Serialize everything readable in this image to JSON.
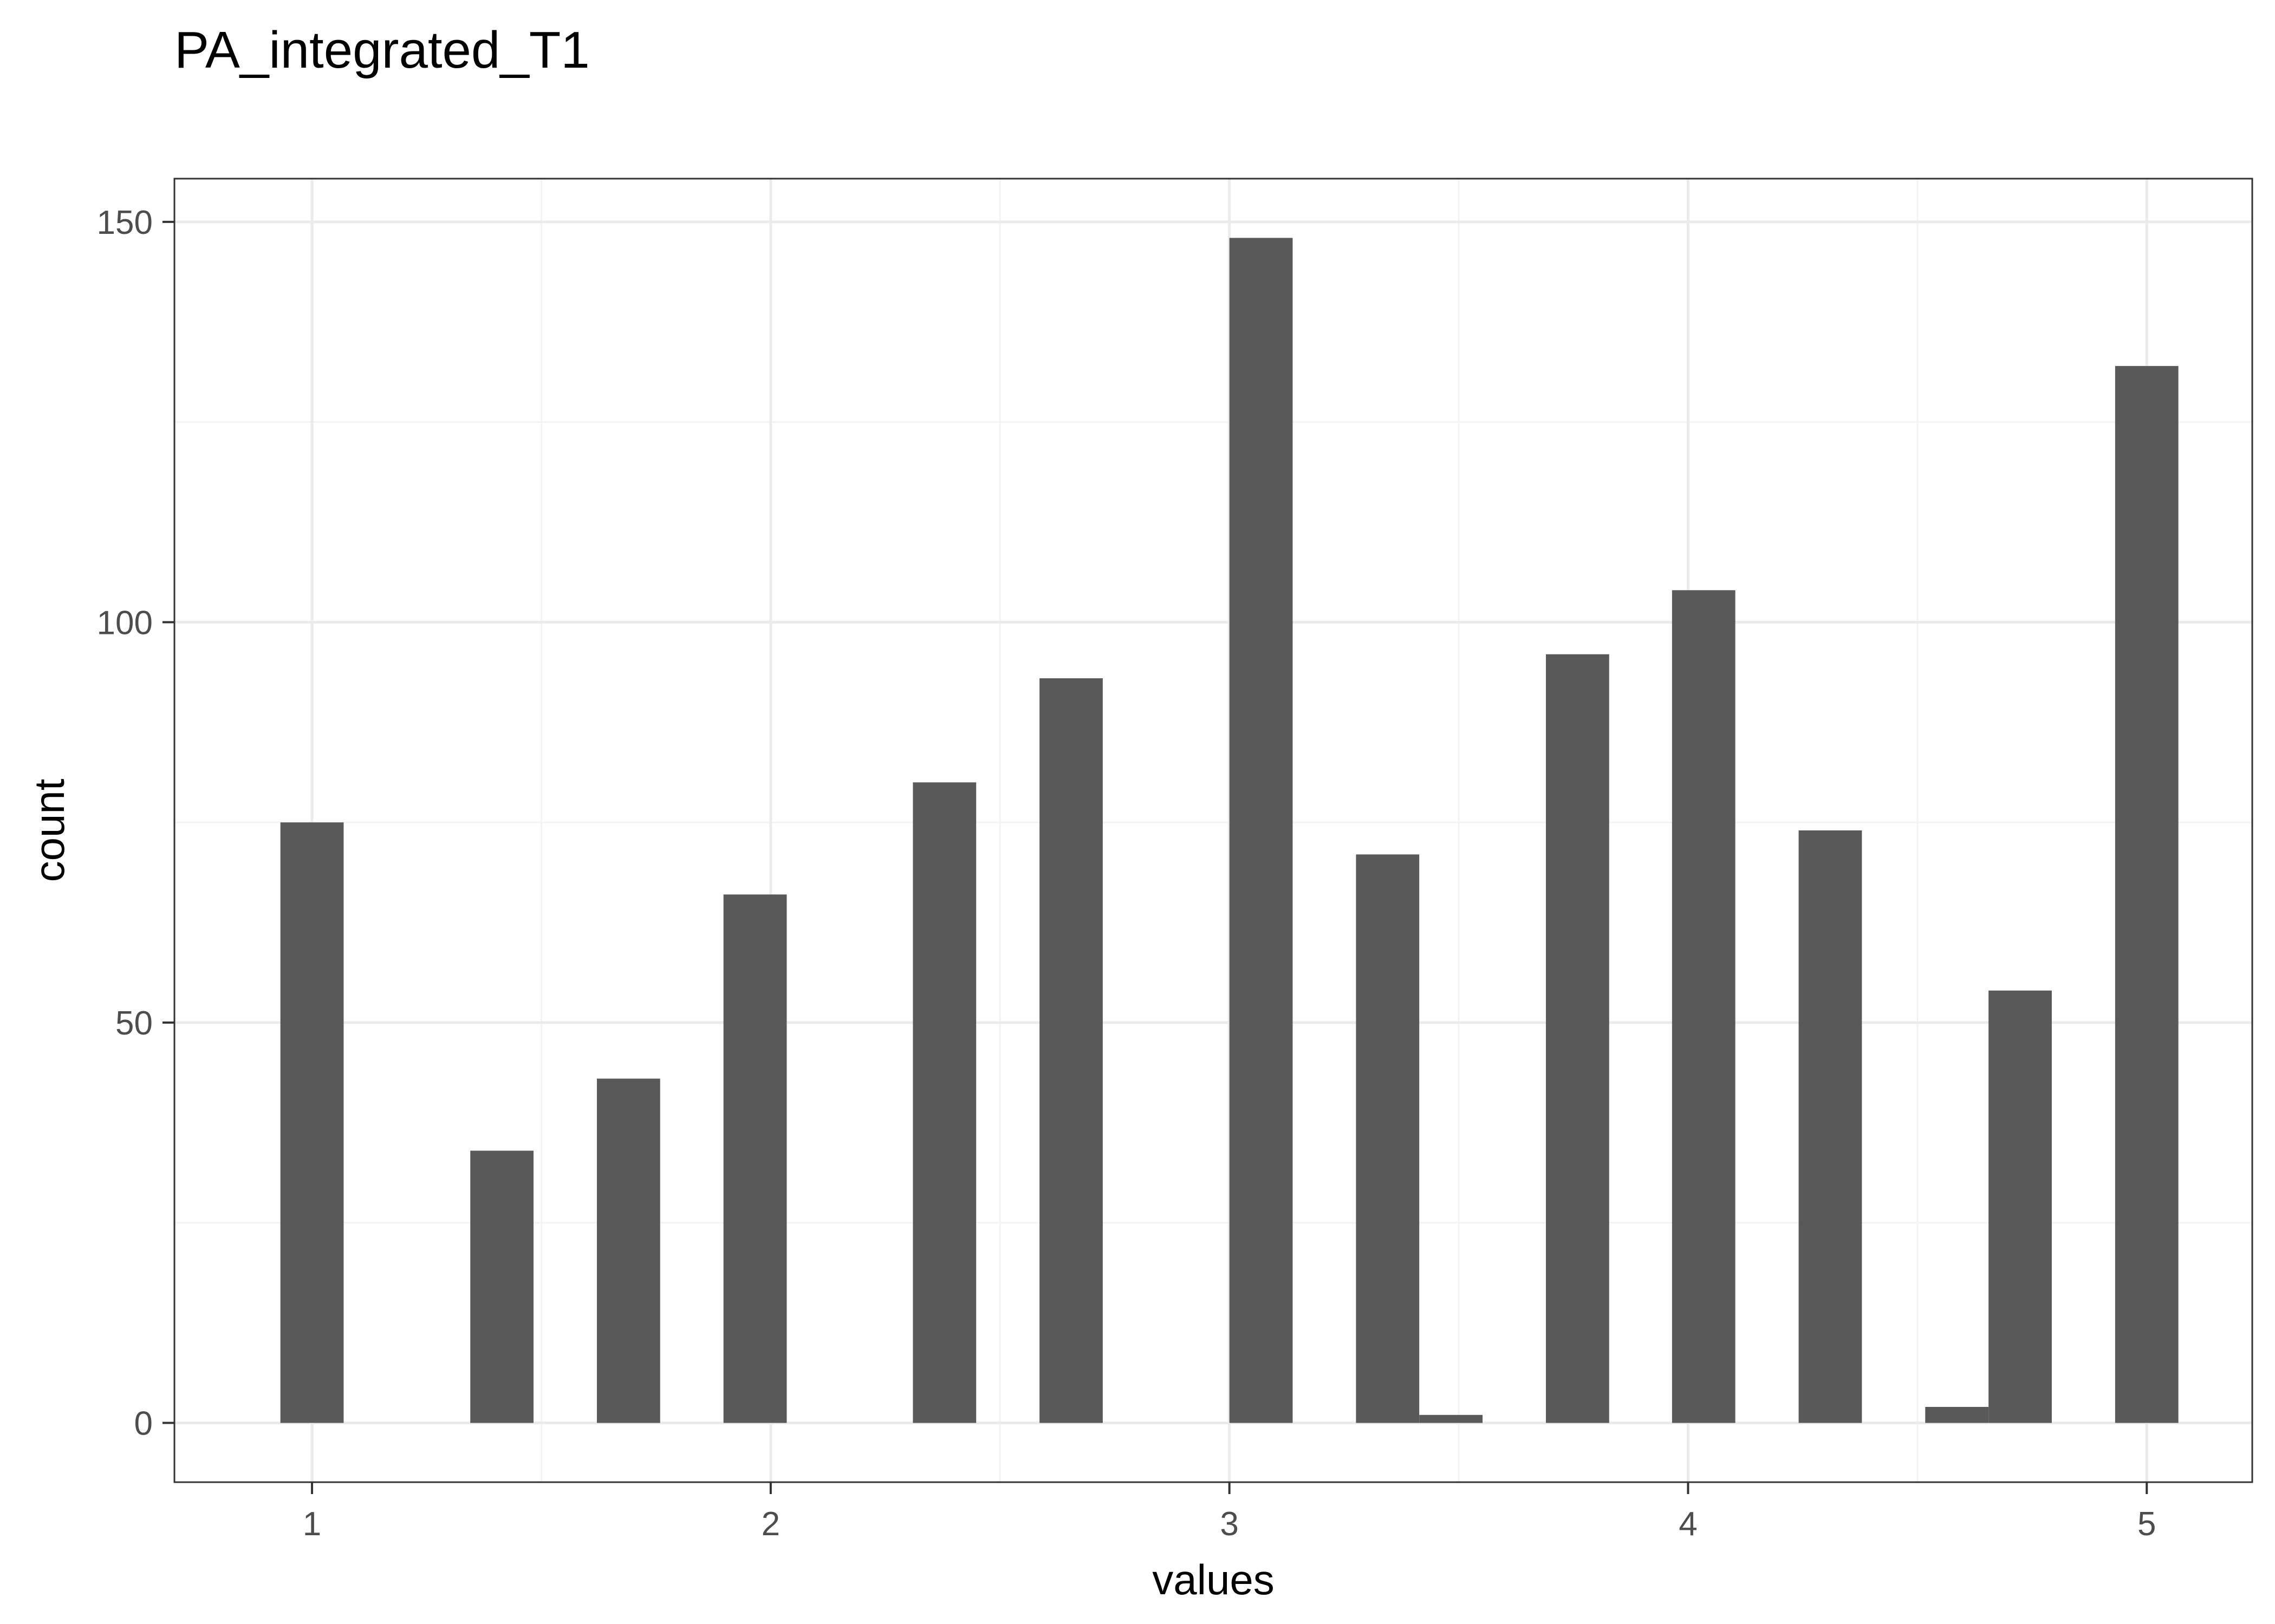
{
  "chart_data": {
    "type": "bar",
    "title": "PA_integrated_T1",
    "xlabel": "values",
    "ylabel": "count",
    "xlim": [
      0.7,
      5.23
    ],
    "ylim": [
      -7.4,
      155.4
    ],
    "x_ticks": [
      1,
      2,
      3,
      4,
      5
    ],
    "y_ticks": [
      0,
      50,
      100,
      150
    ],
    "grid": true,
    "bin_width": 0.1379,
    "bars": [
      {
        "x": 1.0,
        "count": 75
      },
      {
        "x": 1.138,
        "count": 0
      },
      {
        "x": 1.276,
        "count": 0
      },
      {
        "x": 1.414,
        "count": 34
      },
      {
        "x": 1.552,
        "count": 0
      },
      {
        "x": 1.69,
        "count": 43
      },
      {
        "x": 1.828,
        "count": 0
      },
      {
        "x": 1.966,
        "count": 66
      },
      {
        "x": 2.103,
        "count": 0
      },
      {
        "x": 2.241,
        "count": 0
      },
      {
        "x": 2.379,
        "count": 80
      },
      {
        "x": 2.517,
        "count": 0
      },
      {
        "x": 2.655,
        "count": 93
      },
      {
        "x": 2.793,
        "count": 0
      },
      {
        "x": 2.931,
        "count": 0
      },
      {
        "x": 3.069,
        "count": 148
      },
      {
        "x": 3.207,
        "count": 0
      },
      {
        "x": 3.345,
        "count": 71
      },
      {
        "x": 3.483,
        "count": 1
      },
      {
        "x": 3.621,
        "count": 0
      },
      {
        "x": 3.759,
        "count": 96
      },
      {
        "x": 3.897,
        "count": 0
      },
      {
        "x": 4.034,
        "count": 104
      },
      {
        "x": 4.172,
        "count": 0
      },
      {
        "x": 4.31,
        "count": 74
      },
      {
        "x": 4.448,
        "count": 0
      },
      {
        "x": 4.586,
        "count": 2
      },
      {
        "x": 4.724,
        "count": 54
      },
      {
        "x": 4.862,
        "count": 0
      },
      {
        "x": 5.0,
        "count": 132
      }
    ],
    "colors": {
      "bar": "#595959",
      "panel_border": "#333333",
      "grid_major": "#ebebeb",
      "grid_minor": "#f3f3f3"
    }
  }
}
